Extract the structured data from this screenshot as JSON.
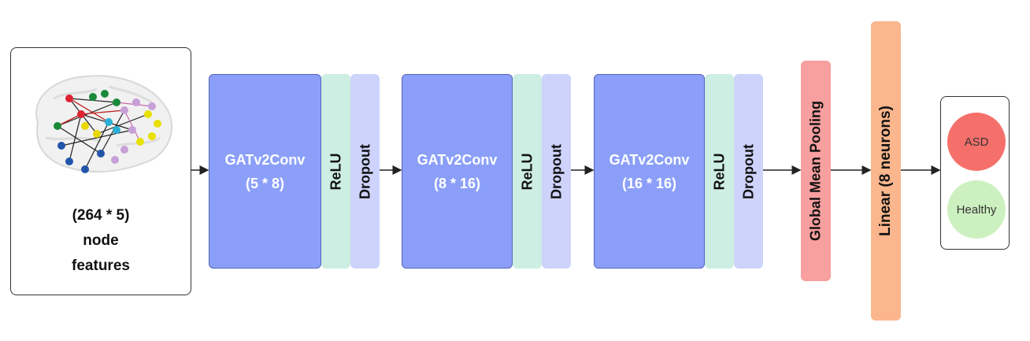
{
  "input": {
    "line1": "(264 * 5)",
    "line2": "node",
    "line3": "features"
  },
  "blocks": [
    {
      "conv_label": "GATv2Conv",
      "conv_dims": "(5 * 8)",
      "relu": "ReLU",
      "dropout": "Dropout"
    },
    {
      "conv_label": "GATv2Conv",
      "conv_dims": "(8 * 16)",
      "relu": "ReLU",
      "dropout": "Dropout"
    },
    {
      "conv_label": "GATv2Conv",
      "conv_dims": "(16 * 16)",
      "relu": "ReLU",
      "dropout": "Dropout"
    }
  ],
  "pooling": {
    "label": "Global Mean Pooling"
  },
  "linear": {
    "label": "Linear (8 neurons)"
  },
  "outputs": {
    "asd": "ASD",
    "healthy": "Healthy"
  },
  "colors": {
    "conv": "#8b9ff9",
    "relu": "#cdeee2",
    "dropout": "#cdd3fb",
    "pooling": "#f89f9f",
    "linear": "#fbb68d",
    "asd": "#f5706b",
    "healthy": "#cdf0c0"
  },
  "icons": {
    "input_image": "brain-graph-icon"
  }
}
